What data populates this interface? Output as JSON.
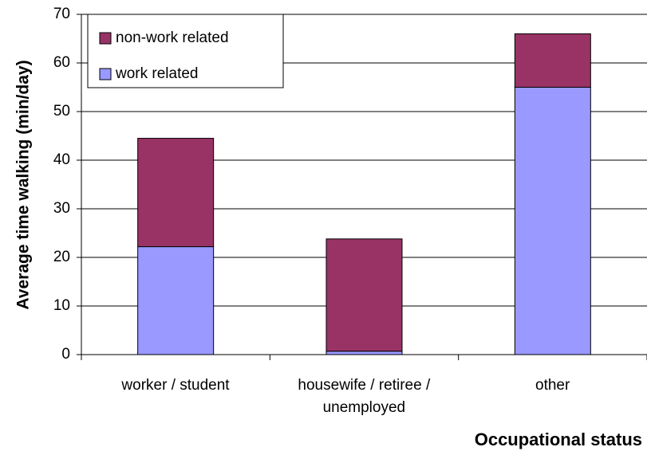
{
  "chart_data": {
    "type": "stacked_bar",
    "y_label": "Average time walking (min/day)",
    "x_label": "Occupational status",
    "categories": [
      "worker / student",
      "housewife / retiree /\nunemployed",
      "other"
    ],
    "series": [
      {
        "name": "work related",
        "color": "#9999ff",
        "values": [
          22.2,
          0.7,
          55
        ]
      },
      {
        "name": "non-work related",
        "color": "#993366",
        "values": [
          22.3,
          23.1,
          11
        ]
      }
    ],
    "ylim": [
      0,
      70
    ],
    "yticks": [
      0,
      10,
      20,
      30,
      40,
      50,
      60,
      70
    ],
    "grid": true,
    "legend": "upper left"
  }
}
